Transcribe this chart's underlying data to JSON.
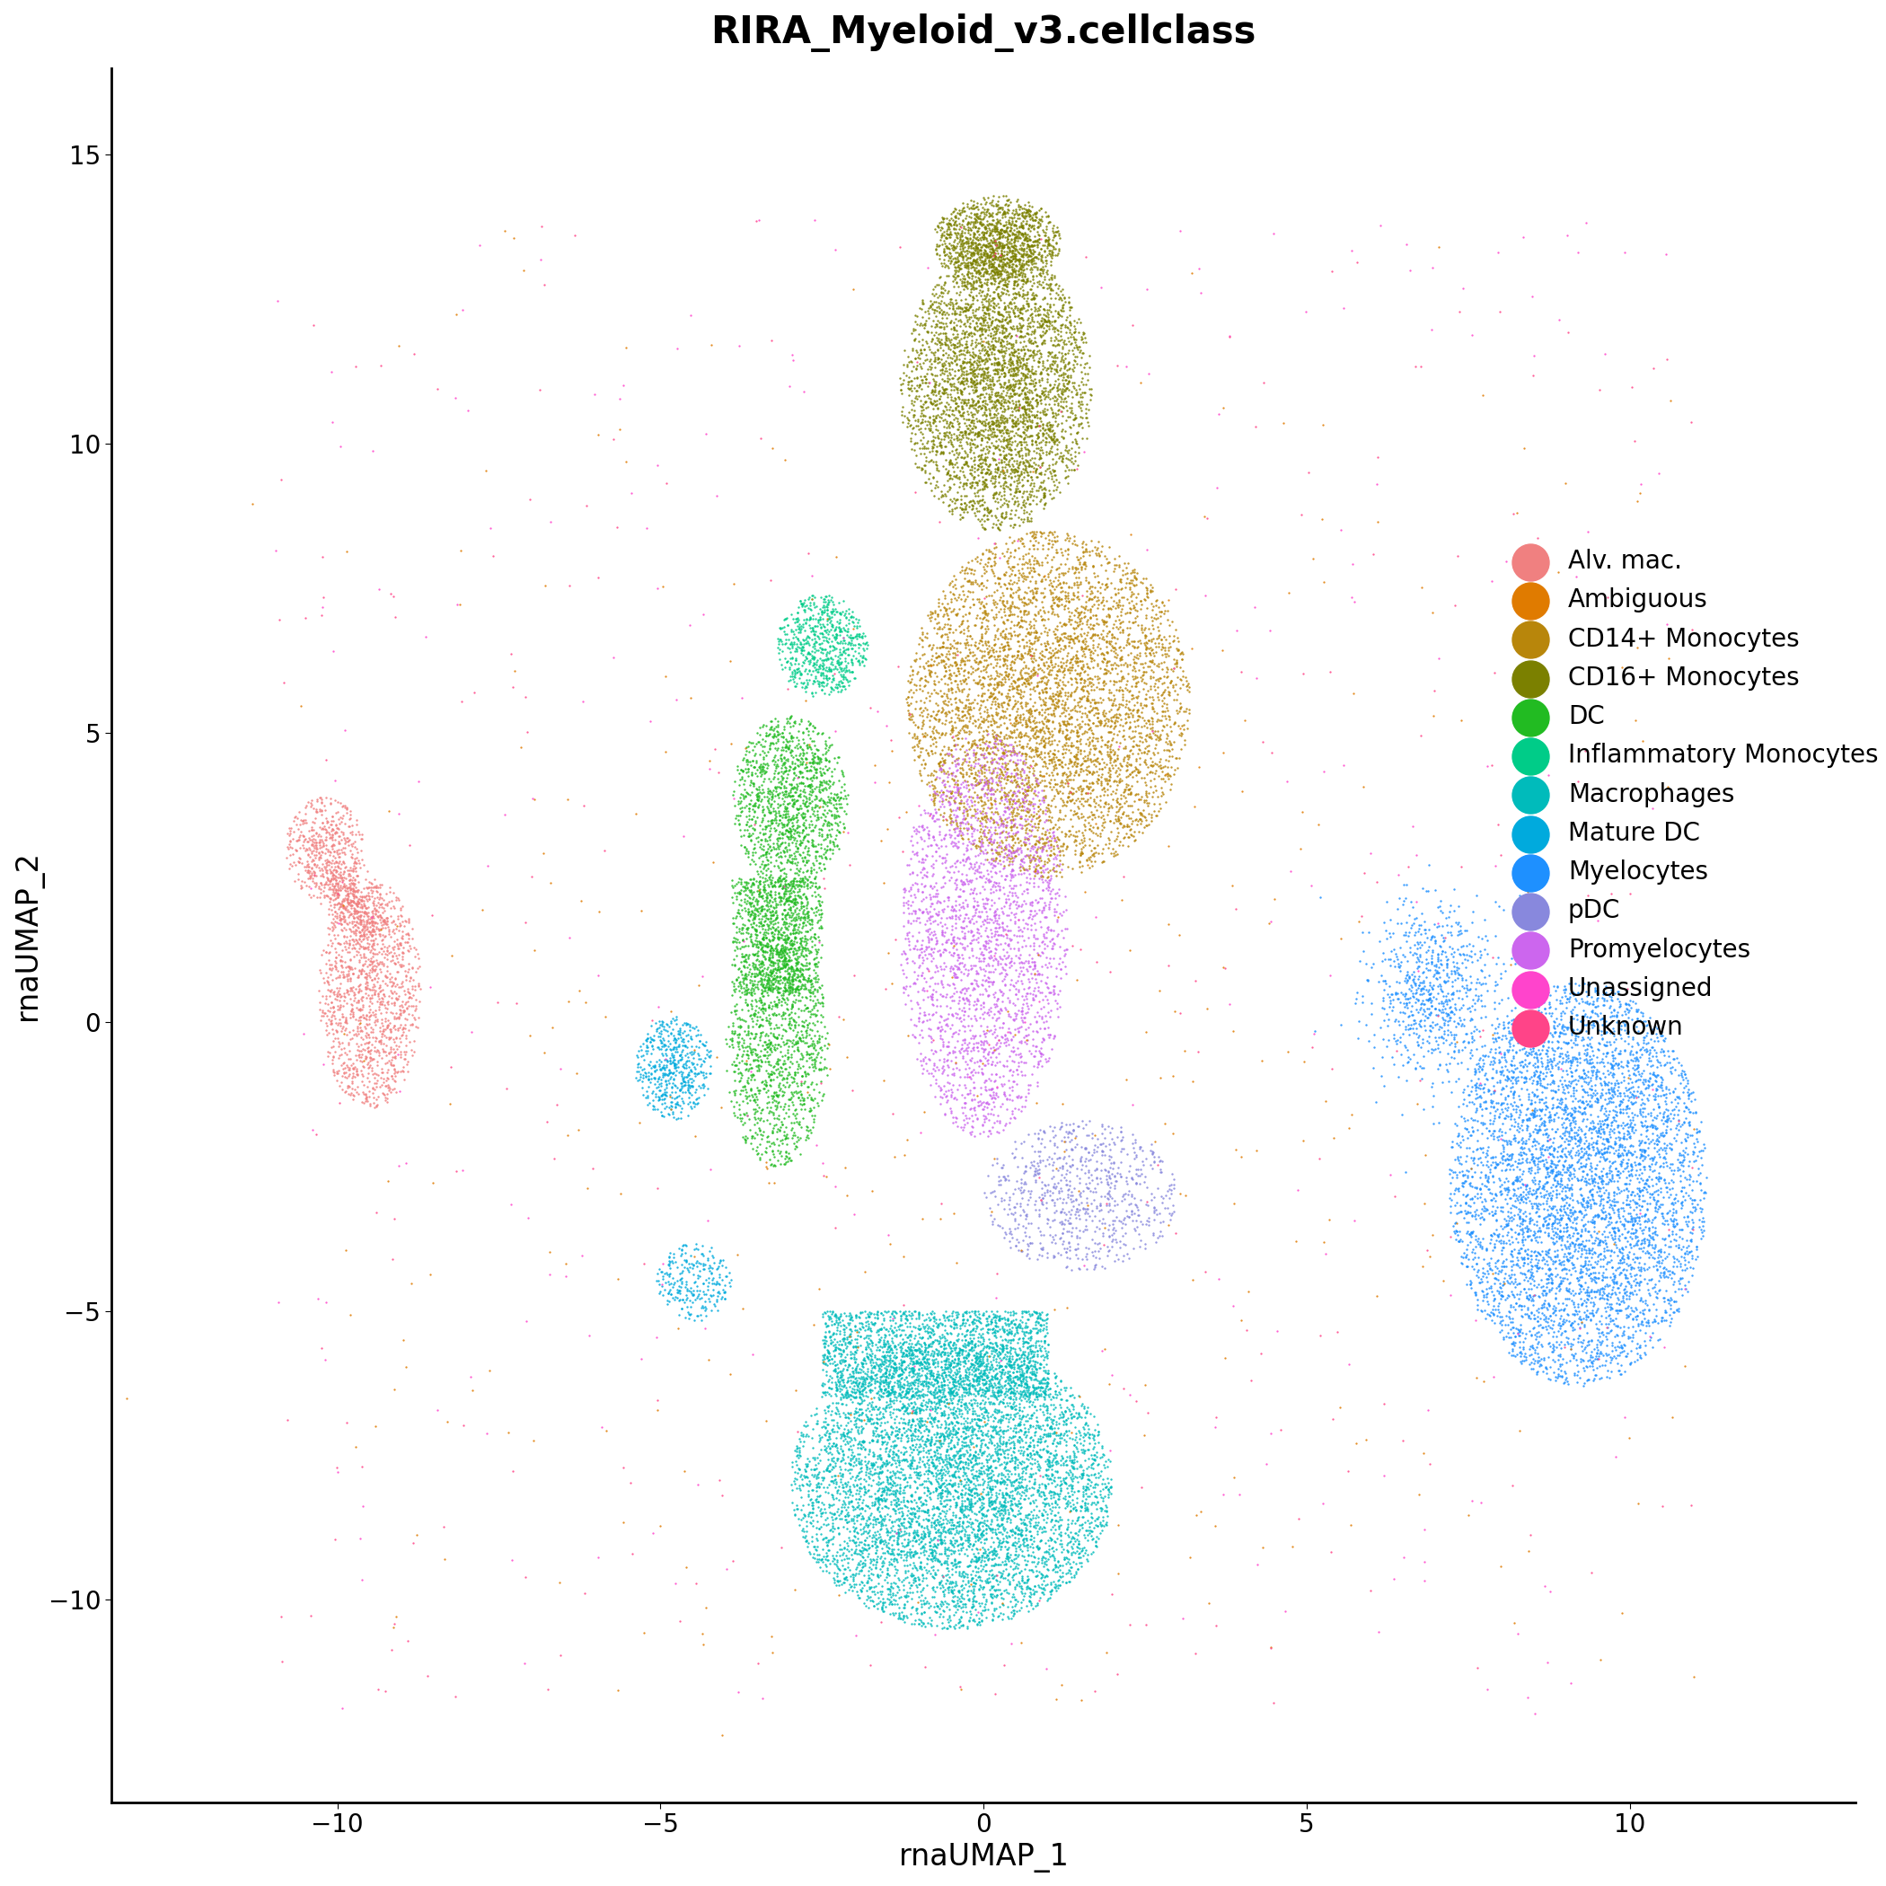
{
  "title": "RIRA_Myeloid_v3.cellclass",
  "xlabel": "rnaUMAP_1",
  "ylabel": "rnaUMAP_2",
  "xlim": [
    -13.5,
    13.5
  ],
  "ylim": [
    -13.5,
    16.5
  ],
  "xticks": [
    -10,
    -5,
    0,
    5,
    10
  ],
  "yticks": [
    -10,
    -5,
    0,
    5,
    10,
    15
  ],
  "cell_types": [
    "Alv. mac.",
    "Ambiguous",
    "CD14+ Monocytes",
    "CD16+ Monocytes",
    "DC",
    "Inflammatory Monocytes",
    "Macrophages",
    "Mature DC",
    "Myelocytes",
    "pDC",
    "Promyelocytes",
    "Unassigned",
    "Unknown"
  ],
  "colors": {
    "Alv. mac.": "#F08080",
    "Ambiguous": "#E07B00",
    "CD14+ Monocytes": "#B8860B",
    "CD16+ Monocytes": "#7B8000",
    "DC": "#22BB22",
    "Inflammatory Monocytes": "#00CC88",
    "Macrophages": "#00BBBB",
    "Mature DC": "#00AADD",
    "Myelocytes": "#1E90FF",
    "pDC": "#8888DD",
    "Promyelocytes": "#CC66EE",
    "Unassigned": "#FF44CC",
    "Unknown": "#FF4488"
  },
  "point_size": 3.0,
  "alpha": 0.85,
  "background_color": "#ffffff",
  "title_fontsize": 30,
  "label_fontsize": 24,
  "tick_fontsize": 20,
  "legend_fontsize": 20
}
